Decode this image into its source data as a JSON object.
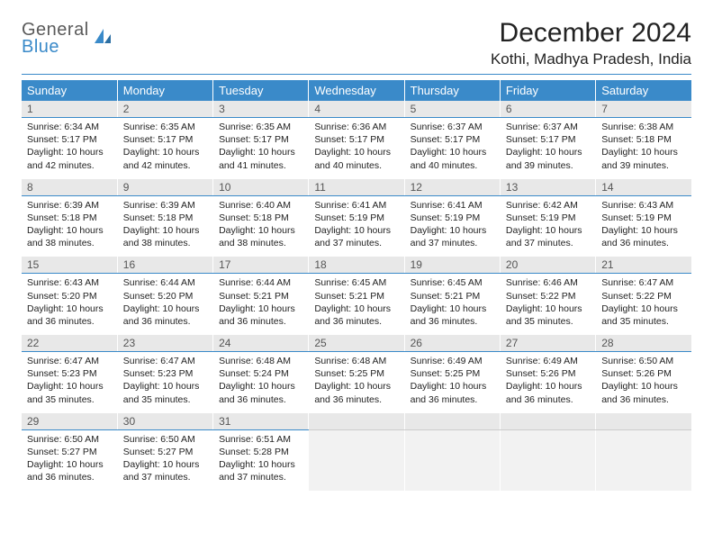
{
  "brand": {
    "line1": "General",
    "line2": "Blue"
  },
  "title": "December 2024",
  "location": "Kothi, Madhya Pradesh, India",
  "colors": {
    "accent": "#3a8ac9",
    "header_bg": "#3a8ac9",
    "header_text": "#ffffff",
    "daynum_bg": "#e8e8e8",
    "daynum_border": "#3a8ac9",
    "text": "#222222",
    "logo_gray": "#5a5a5a"
  },
  "day_headers": [
    "Sunday",
    "Monday",
    "Tuesday",
    "Wednesday",
    "Thursday",
    "Friday",
    "Saturday"
  ],
  "weeks": [
    [
      {
        "n": "1",
        "sr": "Sunrise: 6:34 AM",
        "ss": "Sunset: 5:17 PM",
        "dl": "Daylight: 10 hours and 42 minutes."
      },
      {
        "n": "2",
        "sr": "Sunrise: 6:35 AM",
        "ss": "Sunset: 5:17 PM",
        "dl": "Daylight: 10 hours and 42 minutes."
      },
      {
        "n": "3",
        "sr": "Sunrise: 6:35 AM",
        "ss": "Sunset: 5:17 PM",
        "dl": "Daylight: 10 hours and 41 minutes."
      },
      {
        "n": "4",
        "sr": "Sunrise: 6:36 AM",
        "ss": "Sunset: 5:17 PM",
        "dl": "Daylight: 10 hours and 40 minutes."
      },
      {
        "n": "5",
        "sr": "Sunrise: 6:37 AM",
        "ss": "Sunset: 5:17 PM",
        "dl": "Daylight: 10 hours and 40 minutes."
      },
      {
        "n": "6",
        "sr": "Sunrise: 6:37 AM",
        "ss": "Sunset: 5:17 PM",
        "dl": "Daylight: 10 hours and 39 minutes."
      },
      {
        "n": "7",
        "sr": "Sunrise: 6:38 AM",
        "ss": "Sunset: 5:18 PM",
        "dl": "Daylight: 10 hours and 39 minutes."
      }
    ],
    [
      {
        "n": "8",
        "sr": "Sunrise: 6:39 AM",
        "ss": "Sunset: 5:18 PM",
        "dl": "Daylight: 10 hours and 38 minutes."
      },
      {
        "n": "9",
        "sr": "Sunrise: 6:39 AM",
        "ss": "Sunset: 5:18 PM",
        "dl": "Daylight: 10 hours and 38 minutes."
      },
      {
        "n": "10",
        "sr": "Sunrise: 6:40 AM",
        "ss": "Sunset: 5:18 PM",
        "dl": "Daylight: 10 hours and 38 minutes."
      },
      {
        "n": "11",
        "sr": "Sunrise: 6:41 AM",
        "ss": "Sunset: 5:19 PM",
        "dl": "Daylight: 10 hours and 37 minutes."
      },
      {
        "n": "12",
        "sr": "Sunrise: 6:41 AM",
        "ss": "Sunset: 5:19 PM",
        "dl": "Daylight: 10 hours and 37 minutes."
      },
      {
        "n": "13",
        "sr": "Sunrise: 6:42 AM",
        "ss": "Sunset: 5:19 PM",
        "dl": "Daylight: 10 hours and 37 minutes."
      },
      {
        "n": "14",
        "sr": "Sunrise: 6:43 AM",
        "ss": "Sunset: 5:19 PM",
        "dl": "Daylight: 10 hours and 36 minutes."
      }
    ],
    [
      {
        "n": "15",
        "sr": "Sunrise: 6:43 AM",
        "ss": "Sunset: 5:20 PM",
        "dl": "Daylight: 10 hours and 36 minutes."
      },
      {
        "n": "16",
        "sr": "Sunrise: 6:44 AM",
        "ss": "Sunset: 5:20 PM",
        "dl": "Daylight: 10 hours and 36 minutes."
      },
      {
        "n": "17",
        "sr": "Sunrise: 6:44 AM",
        "ss": "Sunset: 5:21 PM",
        "dl": "Daylight: 10 hours and 36 minutes."
      },
      {
        "n": "18",
        "sr": "Sunrise: 6:45 AM",
        "ss": "Sunset: 5:21 PM",
        "dl": "Daylight: 10 hours and 36 minutes."
      },
      {
        "n": "19",
        "sr": "Sunrise: 6:45 AM",
        "ss": "Sunset: 5:21 PM",
        "dl": "Daylight: 10 hours and 36 minutes."
      },
      {
        "n": "20",
        "sr": "Sunrise: 6:46 AM",
        "ss": "Sunset: 5:22 PM",
        "dl": "Daylight: 10 hours and 35 minutes."
      },
      {
        "n": "21",
        "sr": "Sunrise: 6:47 AM",
        "ss": "Sunset: 5:22 PM",
        "dl": "Daylight: 10 hours and 35 minutes."
      }
    ],
    [
      {
        "n": "22",
        "sr": "Sunrise: 6:47 AM",
        "ss": "Sunset: 5:23 PM",
        "dl": "Daylight: 10 hours and 35 minutes."
      },
      {
        "n": "23",
        "sr": "Sunrise: 6:47 AM",
        "ss": "Sunset: 5:23 PM",
        "dl": "Daylight: 10 hours and 35 minutes."
      },
      {
        "n": "24",
        "sr": "Sunrise: 6:48 AM",
        "ss": "Sunset: 5:24 PM",
        "dl": "Daylight: 10 hours and 36 minutes."
      },
      {
        "n": "25",
        "sr": "Sunrise: 6:48 AM",
        "ss": "Sunset: 5:25 PM",
        "dl": "Daylight: 10 hours and 36 minutes."
      },
      {
        "n": "26",
        "sr": "Sunrise: 6:49 AM",
        "ss": "Sunset: 5:25 PM",
        "dl": "Daylight: 10 hours and 36 minutes."
      },
      {
        "n": "27",
        "sr": "Sunrise: 6:49 AM",
        "ss": "Sunset: 5:26 PM",
        "dl": "Daylight: 10 hours and 36 minutes."
      },
      {
        "n": "28",
        "sr": "Sunrise: 6:50 AM",
        "ss": "Sunset: 5:26 PM",
        "dl": "Daylight: 10 hours and 36 minutes."
      }
    ],
    [
      {
        "n": "29",
        "sr": "Sunrise: 6:50 AM",
        "ss": "Sunset: 5:27 PM",
        "dl": "Daylight: 10 hours and 36 minutes."
      },
      {
        "n": "30",
        "sr": "Sunrise: 6:50 AM",
        "ss": "Sunset: 5:27 PM",
        "dl": "Daylight: 10 hours and 37 minutes."
      },
      {
        "n": "31",
        "sr": "Sunrise: 6:51 AM",
        "ss": "Sunset: 5:28 PM",
        "dl": "Daylight: 10 hours and 37 minutes."
      },
      null,
      null,
      null,
      null
    ]
  ]
}
